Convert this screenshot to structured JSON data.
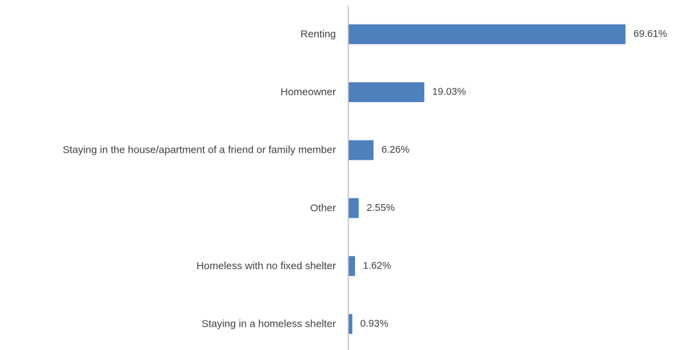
{
  "chart_data": {
    "type": "bar",
    "orientation": "horizontal",
    "categories": [
      "Renting",
      "Homeowner",
      "Staying in the house/apartment of a friend or family member",
      "Other",
      "Homeless with no fixed shelter",
      "Staying in a homeless shelter"
    ],
    "values": [
      69.61,
      19.03,
      6.26,
      2.55,
      1.62,
      0.93
    ],
    "value_labels": [
      "69.61%",
      "19.03%",
      "6.26%",
      "2.55%",
      "1.62%",
      "0.93%"
    ],
    "unit": "%",
    "xlim": [
      0,
      69.61
    ],
    "grid": false,
    "legend": "none",
    "bar_color": "#4e81bd",
    "axis_color": "#bfbfbf"
  }
}
